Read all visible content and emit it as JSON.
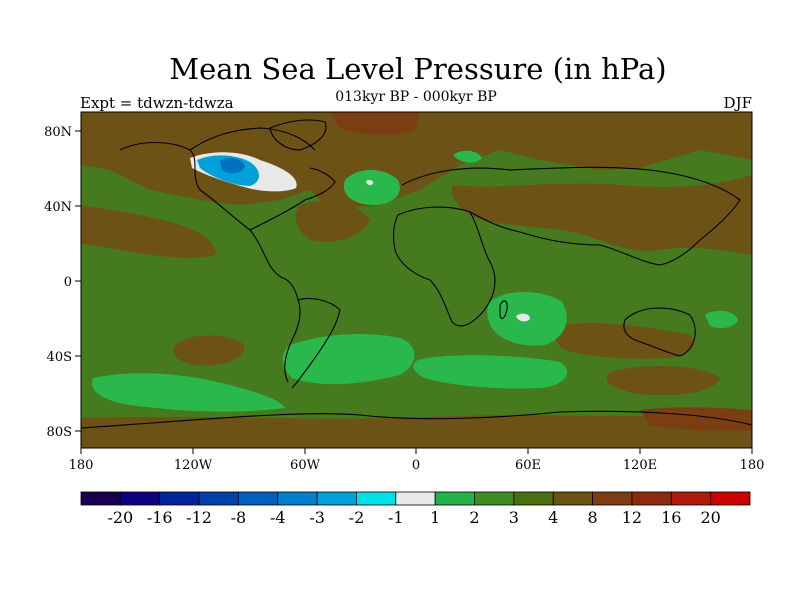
{
  "title": "Mean Sea Level Pressure (in hPa)",
  "subtitle": "013kyr BP - 000kyr BP",
  "expt_label": "Expt = tdwzn-tdwza",
  "season": "DJF",
  "lat_ticks": [
    "80N",
    "40N",
    "0",
    "40S",
    "80S"
  ],
  "lon_ticks": [
    "180",
    "120W",
    "60W",
    "0",
    "60E",
    "120E",
    "180"
  ],
  "colorbar": {
    "colors": [
      "#1a0050",
      "#0d0080",
      "#00249c",
      "#0041a8",
      "#0060bd",
      "#0080cc",
      "#00a1d9",
      "#00e0e5",
      "#e8e8e8",
      "#26b24a",
      "#3e8c22",
      "#4c6e12",
      "#6a5212",
      "#7d3d12",
      "#8b2a0c",
      "#ae1a0a",
      "#cc0000"
    ],
    "labels": [
      "-20",
      "-16",
      "-12",
      "-8",
      "-4",
      "-3",
      "-2",
      "-1",
      "1",
      "2",
      "3",
      "4",
      "8",
      "12",
      "16",
      "20"
    ]
  },
  "field_colors": {
    "base": "#467a1f",
    "brown": "#6c5214",
    "dark_brown": "#7a3e12",
    "green": "#2ab84c",
    "white": "#e8e8e8",
    "cyan": "#00a1d9",
    "blue": "#0070c0",
    "olive": "#576b14"
  }
}
